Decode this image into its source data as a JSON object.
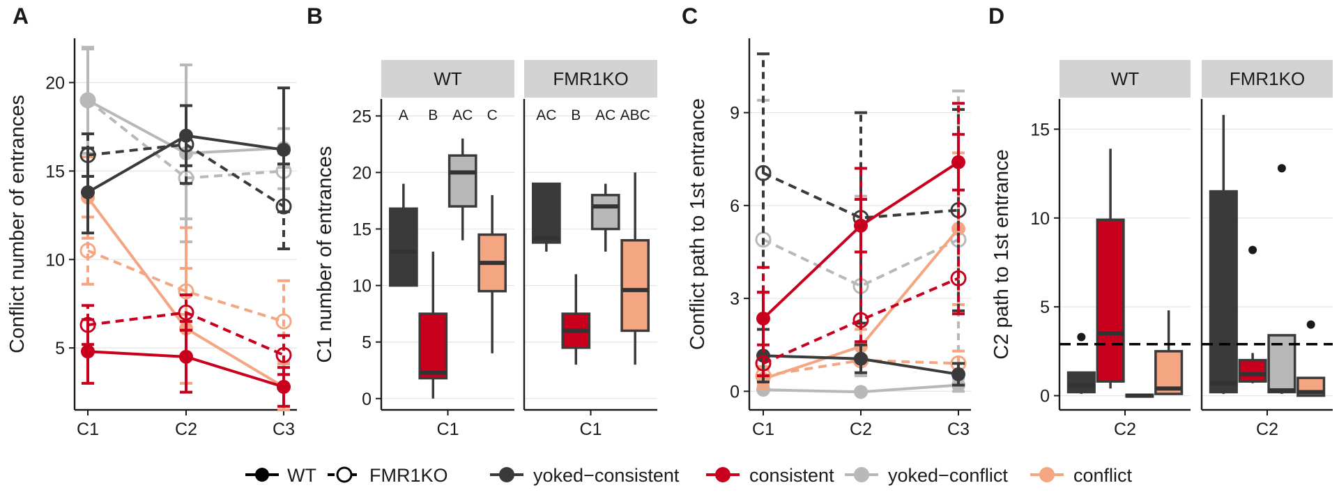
{
  "colors": {
    "yoked-consistent": "#3a3a3a",
    "consistent": "#c8001e",
    "yoked-conflict": "#b8b8b8",
    "conflict": "#f4a582",
    "strip": "#d3d3d3",
    "grid": "#e6e6e6"
  },
  "legend": {
    "genotypes": [
      {
        "key": "WT",
        "label": "WT",
        "style": "solid-filled"
      },
      {
        "key": "FMR1KO",
        "label": "FMR1KO",
        "style": "dashed-open"
      }
    ],
    "groups": [
      {
        "key": "yoked-consistent",
        "label": "yoked−consistent"
      },
      {
        "key": "consistent",
        "label": "consistent"
      },
      {
        "key": "yoked-conflict",
        "label": "yoked−conflict"
      },
      {
        "key": "conflict",
        "label": "conflict"
      }
    ]
  },
  "chart_data": [
    {
      "panel": "A",
      "type": "line",
      "ylabel": "Conflict number of entrances",
      "x": [
        "C1",
        "C2",
        "C3"
      ],
      "ylim": [
        1.5,
        22.5
      ],
      "yticks": [
        5,
        10,
        15,
        20
      ],
      "series": [
        {
          "group": "yoked-consistent",
          "genotype": "WT",
          "values": [
            13.8,
            17.0,
            16.2
          ],
          "err_low": [
            11.5,
            15.3,
            12.7
          ],
          "err_high": [
            16.3,
            18.7,
            19.7
          ]
        },
        {
          "group": "yoked-consistent",
          "genotype": "FMR1KO",
          "values": [
            15.9,
            16.5,
            13.0
          ],
          "err_low": [
            14.7,
            14.3,
            10.6
          ],
          "err_high": [
            17.1,
            18.7,
            15.4
          ]
        },
        {
          "group": "consistent",
          "genotype": "WT",
          "values": [
            4.8,
            4.5,
            2.8
          ],
          "err_low": [
            3.0,
            2.5,
            1.7
          ],
          "err_high": [
            6.6,
            6.5,
            3.9
          ]
        },
        {
          "group": "consistent",
          "genotype": "FMR1KO",
          "values": [
            6.3,
            7.0,
            4.6
          ],
          "err_low": [
            5.2,
            6.0,
            3.5
          ],
          "err_high": [
            7.4,
            8.0,
            5.7
          ]
        },
        {
          "group": "yoked-conflict",
          "genotype": "WT",
          "values": [
            19.0,
            16.0,
            16.3
          ],
          "err_low": [
            16.0,
            11.0,
            15.2
          ],
          "err_high": [
            22.0,
            21.0,
            17.4
          ]
        },
        {
          "group": "yoked-conflict",
          "genotype": "FMR1KO",
          "values": [
            19.0,
            14.6,
            15.0
          ],
          "err_low": [
            16.0,
            12.3,
            14.0
          ],
          "err_high": [
            21.9,
            16.9,
            16.0
          ]
        },
        {
          "group": "conflict",
          "genotype": "WT",
          "values": [
            13.5,
            6.1,
            2.8
          ],
          "err_low": [
            11.2,
            3.0,
            1.5
          ],
          "err_high": [
            15.8,
            11.8,
            4.1
          ]
        },
        {
          "group": "conflict",
          "genotype": "FMR1KO",
          "values": [
            10.5,
            8.2,
            6.5
          ],
          "err_low": [
            8.6,
            6.9,
            4.2
          ],
          "err_high": [
            12.4,
            9.5,
            8.8
          ]
        }
      ]
    },
    {
      "panel": "B",
      "type": "box",
      "ylabel": "C1 number of entrances",
      "ylim": [
        -1,
        26.5
      ],
      "yticks": [
        0,
        5,
        10,
        15,
        20,
        25
      ],
      "facets": [
        {
          "title": "WT",
          "xlabel": "C1",
          "letters": [
            "A",
            "B",
            "AC",
            "C"
          ],
          "boxes": [
            {
              "group": "yoked-consistent",
              "min": 10,
              "q1": 10,
              "median": 13,
              "q3": 16.8,
              "max": 19
            },
            {
              "group": "consistent",
              "min": 0,
              "q1": 1.8,
              "median": 2.3,
              "q3": 7.5,
              "max": 13
            },
            {
              "group": "yoked-conflict",
              "min": 14,
              "q1": 17,
              "median": 20,
              "q3": 21.5,
              "max": 23
            },
            {
              "group": "conflict",
              "min": 4,
              "q1": 9.5,
              "median": 12,
              "q3": 14.5,
              "max": 18
            }
          ]
        },
        {
          "title": "FMR1KO",
          "xlabel": "C1",
          "letters": [
            "AC",
            "B",
            "AC",
            "ABC"
          ],
          "boxes": [
            {
              "group": "yoked-consistent",
              "min": 13,
              "q1": 13.8,
              "median": 14.2,
              "q3": 19,
              "max": 19
            },
            {
              "group": "consistent",
              "min": 3,
              "q1": 4.5,
              "median": 6,
              "q3": 7.5,
              "max": 11
            },
            {
              "group": "yoked-conflict",
              "min": 13,
              "q1": 15,
              "median": 17,
              "q3": 18,
              "max": 19
            },
            {
              "group": "conflict",
              "min": 3,
              "q1": 6,
              "median": 9.6,
              "q3": 14,
              "max": 20
            }
          ]
        }
      ]
    },
    {
      "panel": "C",
      "type": "line",
      "ylabel": "Conflict path to 1st entrance",
      "x": [
        "C1",
        "C2",
        "C3"
      ],
      "ylim": [
        -0.6,
        11.4
      ],
      "yticks": [
        0,
        3,
        6,
        9
      ],
      "series": [
        {
          "group": "yoked-consistent",
          "genotype": "WT",
          "values": [
            1.15,
            1.05,
            0.55
          ],
          "err_low": [
            0.3,
            0.6,
            0.2
          ],
          "err_high": [
            2.0,
            1.5,
            0.9
          ]
        },
        {
          "group": "yoked-consistent",
          "genotype": "FMR1KO",
          "values": [
            7.05,
            5.6,
            5.85
          ],
          "err_low": [
            3.2,
            2.2,
            2.6
          ],
          "err_high": [
            10.9,
            9.0,
            9.1
          ]
        },
        {
          "group": "consistent",
          "genotype": "WT",
          "values": [
            2.35,
            5.35,
            7.4
          ],
          "err_low": [
            1.5,
            4.5,
            6.5
          ],
          "err_high": [
            3.2,
            6.2,
            8.3
          ]
        },
        {
          "group": "consistent",
          "genotype": "FMR1KO",
          "values": [
            0.9,
            2.3,
            3.65
          ],
          "err_low": [
            0.5,
            1.6,
            2.5
          ],
          "err_high": [
            4.0,
            7.2,
            9.3
          ]
        },
        {
          "group": "yoked-conflict",
          "genotype": "WT",
          "values": [
            0.05,
            -0.02,
            0.2
          ],
          "err_low": [
            0.0,
            -0.05,
            0.0
          ],
          "err_high": [
            0.1,
            0.05,
            0.4
          ]
        },
        {
          "group": "yoked-conflict",
          "genotype": "FMR1KO",
          "values": [
            4.9,
            3.4,
            4.9
          ],
          "err_low": [
            0.5,
            0.5,
            0.5
          ],
          "err_high": [
            9.4,
            6.3,
            9.7
          ]
        },
        {
          "group": "conflict",
          "genotype": "WT",
          "values": [
            0.4,
            1.45,
            5.25
          ],
          "err_low": [
            0.1,
            0.9,
            2.8
          ],
          "err_high": [
            0.7,
            2.0,
            7.7
          ]
        },
        {
          "group": "conflict",
          "genotype": "FMR1KO",
          "values": [
            0.5,
            1.0,
            0.9
          ],
          "err_low": [
            0.2,
            0.6,
            0.5
          ],
          "err_high": [
            0.8,
            1.4,
            1.3
          ]
        }
      ]
    },
    {
      "panel": "D",
      "type": "box",
      "ylabel": "C2 path to 1st entrance",
      "ylim": [
        -0.8,
        16.7
      ],
      "yticks": [
        0,
        5,
        10,
        15
      ],
      "hline": 2.9,
      "facets": [
        {
          "title": "WT",
          "xlabel": "C2",
          "boxes": [
            {
              "group": "yoked-consistent",
              "min": 0.1,
              "q1": 0.2,
              "median": 0.6,
              "q3": 1.3,
              "max": 1.3,
              "outliers": [
                3.3
              ]
            },
            {
              "group": "consistent",
              "min": 0.4,
              "q1": 0.8,
              "median": 3.5,
              "q3": 9.9,
              "max": 13.9
            },
            {
              "group": "yoked-conflict",
              "min": -0.05,
              "q1": -0.05,
              "median": 0.0,
              "q3": 0.05,
              "max": 0.05
            },
            {
              "group": "conflict",
              "min": 0.1,
              "q1": 0.1,
              "median": 0.4,
              "q3": 2.5,
              "max": 4.8
            }
          ]
        },
        {
          "title": "FMR1KO",
          "xlabel": "C2",
          "boxes": [
            {
              "group": "yoked-consistent",
              "min": 0.1,
              "q1": 0.2,
              "median": 0.7,
              "q3": 11.5,
              "max": 15.8
            },
            {
              "group": "consistent",
              "min": 0.7,
              "q1": 0.8,
              "median": 1.2,
              "q3": 2.0,
              "max": 2.4,
              "outliers": [
                8.2
              ]
            },
            {
              "group": "yoked-conflict",
              "min": 0.1,
              "q1": 0.2,
              "median": 0.3,
              "q3": 3.4,
              "max": 3.4,
              "outliers": [
                12.8
              ]
            },
            {
              "group": "conflict",
              "min": -0.05,
              "q1": 0.0,
              "median": 0.2,
              "q3": 1.0,
              "max": 1.0,
              "outliers": [
                4.0
              ]
            }
          ]
        }
      ]
    }
  ]
}
